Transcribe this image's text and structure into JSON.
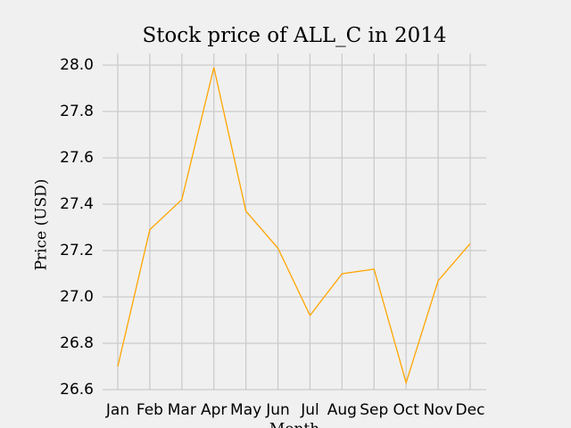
{
  "chart_data": {
    "type": "line",
    "title": "Stock price of ALL_C in 2014",
    "x_label": "Month",
    "y_label": "Price (USD)",
    "categories": [
      "Jan",
      "Feb",
      "Mar",
      "Apr",
      "May",
      "Jun",
      "Jul",
      "Aug",
      "Sep",
      "Oct",
      "Nov",
      "Dec"
    ],
    "values": [
      26.7,
      27.29,
      27.42,
      27.99,
      27.37,
      27.21,
      26.92,
      27.1,
      27.12,
      26.63,
      27.07,
      27.23
    ],
    "color": "#ffa500",
    "ylim": [
      26.6,
      28.05
    ],
    "yticks": [
      {
        "value": 26.6,
        "label": "26.6"
      },
      {
        "value": 26.8,
        "label": "26.8"
      },
      {
        "value": 27.0,
        "label": "27.0"
      },
      {
        "value": 27.2,
        "label": "27.2"
      },
      {
        "value": 27.4,
        "label": "27.4"
      },
      {
        "value": 27.6,
        "label": "27.6"
      },
      {
        "value": 27.8,
        "label": "27.8"
      },
      {
        "value": 28.0,
        "label": "28.0"
      }
    ],
    "grid": true
  }
}
